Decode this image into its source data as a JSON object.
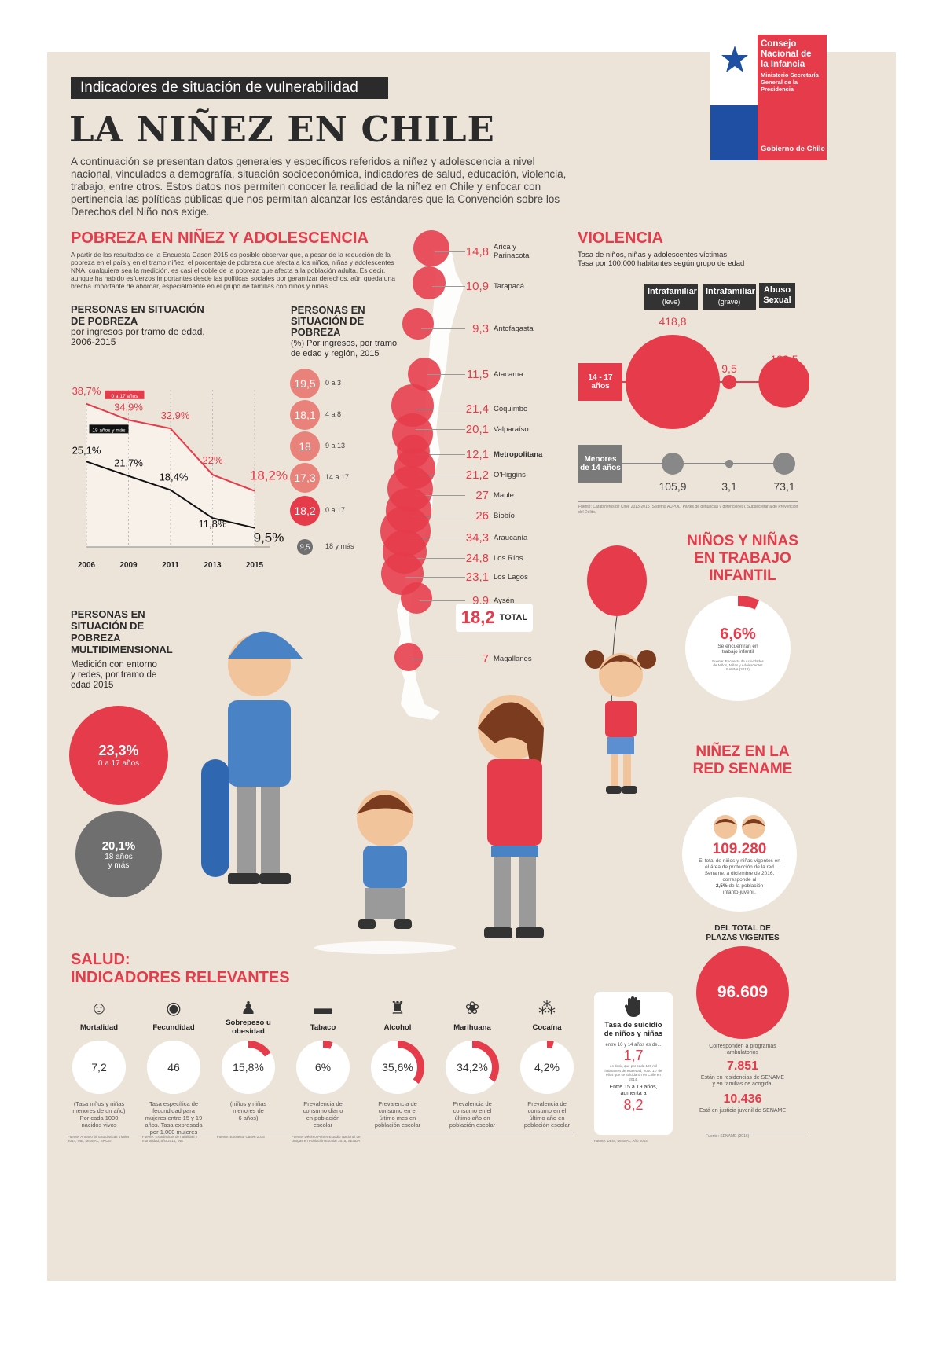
{
  "header": {
    "banner": "Indicadores de situación de vulnerabilidad",
    "title": "LA NIÑEZ EN CHILE",
    "intro": "A continuación se presentan datos generales y específicos referidos a niñez y adolescencia a nivel nacional, vinculados a demografía, situación socioeconómica, indicadores de salud, educación, violencia, trabajo, entre otros. Estos datos nos permiten conocer la realidad de la niñez en Chile y enfocar con pertinencia las políticas públicas que nos permitan alcanzar los estándares que la Convención sobre los Derechos del Niño nos exige."
  },
  "logo": {
    "line1": "Consejo",
    "line2": "Nacional de",
    "line3": "la Infancia",
    "sub1": "Ministerio Secretaría",
    "sub2": "General de la",
    "sub3": "Presidencia",
    "gov": "Gobierno de Chile",
    "colors": {
      "blue": "#1f4fa3",
      "red": "#e63b4a"
    }
  },
  "pobreza": {
    "title": "POBREZA EN NIÑEZ Y ADOLESCENCIA",
    "text": "A partir de los resultados de la Encuesta Casen 2015 es posible observar que, a pesar de la reducción de la pobreza en el país y en el tramo niñez, el porcentaje de pobreza que afecta a los niños, niñas y adolescentes NNA, cualquiera sea la medición, es casi el doble de la pobreza que afecta a la población adulta. Es decir, aunque ha habido esfuerzos importantes desde las políticas sociales por garantizar derechos, aún queda una brecha importante de abordar, especialmente en el grupo de familias con niños y niñas.",
    "chart1_title1": "PERSONAS EN SITUACIÓN",
    "chart1_title2": "DE POBREZA",
    "chart1_sub1": "por ingresos por tramo de edad,",
    "chart1_sub2": "2006-2015",
    "chart2_title": "PERSONAS EN SITUACIÓN DE POBREZA",
    "chart2_sub": "(%) Por ingresos, por tramo de edad y región, 2015"
  },
  "chart_data": [
    {
      "type": "line",
      "x": [
        "2006",
        "2009",
        "2011",
        "2013",
        "2015"
      ],
      "series": [
        {
          "name": "0 a 17 años",
          "values": [
            38.7,
            34.9,
            32.9,
            22,
            18.2
          ],
          "labels": [
            "38,7%",
            "34,9%",
            "32,9%",
            "22%",
            "18,2%"
          ],
          "color": "#e63b4a"
        },
        {
          "name": "18 años y más",
          "values": [
            25.1,
            21.7,
            18.4,
            11.8,
            9.5
          ],
          "labels": [
            "25,1%",
            "21,7%",
            "18,4%",
            "11,8%",
            "9,5%"
          ],
          "color": "#111111"
        }
      ],
      "ylim": [
        5,
        42
      ]
    },
    {
      "type": "bubble",
      "categories": [
        "Arica y Parinacota",
        "Tarapacá",
        "Antofagasta",
        "Atacama",
        "Coquimbo",
        "Valparaíso",
        "Metropolitana",
        "O'Higgins",
        "Maule",
        "Biobío",
        "Araucanía",
        "Los Ríos",
        "Los Lagos",
        "Aysén",
        "Magallanes"
      ],
      "values": [
        14.8,
        10.9,
        9.3,
        11.5,
        21.4,
        20.1,
        12.1,
        21.2,
        27,
        26,
        34.3,
        24.8,
        23.1,
        9.9,
        7
      ],
      "labels": [
        "14,8",
        "10,9",
        "9,3",
        "11,5",
        "21,4",
        "20,1",
        "12,1",
        "21,2",
        "27",
        "26",
        "34,3",
        "24,8",
        "23,1",
        "9,9",
        "7"
      ],
      "total_value": "18,2",
      "total_label": "TOTAL"
    },
    {
      "type": "bubble",
      "categories": [
        "0 a 3",
        "4 a 8",
        "9 a 13",
        "14 a 17",
        "0 a 17",
        "18 y más"
      ],
      "labels": [
        "19,5",
        "18,1",
        "18",
        "17,3",
        "18,2",
        "9,5"
      ],
      "values": [
        19.5,
        18.1,
        18,
        17.3,
        18.2,
        9.5
      ]
    },
    {
      "type": "bubble",
      "categories": [
        "Intrafamiliar (leve)",
        "Intrafamiliar (grave)",
        "Abuso Sexual"
      ],
      "series": [
        {
          "name": "14 - 17 años",
          "values": [
            418.8,
            9.5,
            123.5
          ],
          "labels": [
            "418,8",
            "9,5",
            "123,5"
          ]
        },
        {
          "name": "Menores de 14 años",
          "values": [
            105.9,
            3.1,
            73.1
          ],
          "labels": [
            "105,9",
            "3,1",
            "73,1"
          ]
        }
      ]
    }
  ],
  "multidim": {
    "title1": "PERSONAS EN",
    "title2": "SITUACIÓN DE",
    "title3": "POBREZA",
    "title4": "MULTIDIMENSIONAL",
    "sub1": "Medición con entorno",
    "sub2": "y redes, por tramo de",
    "sub3": "edad 2015",
    "v1": "23,3%",
    "l1": "0 a 17 años",
    "v2": "20,1%",
    "l2a": "18 años",
    "l2b": "y más"
  },
  "violencia": {
    "title": "VIOLENCIA",
    "sub1": "Tasa de niños, niñas y adolescentes víctimas.",
    "sub2": "Tasa por 100.000 habitantes según grupo de edad",
    "col1a": "Intrafamiliar",
    "col1b": "(leve)",
    "col2a": "Intrafamiliar",
    "col2b": "(grave)",
    "col3a": "Abuso",
    "col3b": "Sexual",
    "row1a": "14 - 17",
    "row1b": "años",
    "row2a": "Menores",
    "row2b": "de 14 años",
    "fuente": "Fuente: Carabineros de Chile 2013-2015 (Sistema AUPOL, Partes de denuncias y detenciones). Subsecretaría de Prevención del Delito."
  },
  "trabajo": {
    "title1": "NIÑOS Y NIÑAS",
    "title2": "EN TRABAJO",
    "title3": "INFANTIL",
    "value": "6,6%",
    "desc1": "Se encuentran en",
    "desc2": "trabajo infantil",
    "fuente": "Fuente: Encuesta de Actividades de Niños, Niñas y Adolescentes EANNA (2012)",
    "fraction": 0.066
  },
  "sename": {
    "title1": "NIÑEZ EN LA",
    "title2": "RED SENAME",
    "value": "109.280",
    "desc1": "El total de niños y niñas vigentes en",
    "desc2": "el área de protección de la red",
    "desc3": "Sename, a diciembre de 2016,",
    "desc4": "corresponde al",
    "desc5pct": "2,5%",
    "desc5": " de la población",
    "desc6": "infanto-juvenil.",
    "plazas1": "DEL TOTAL DE",
    "plazas2": "PLAZAS VIGENTES",
    "plazas_value": "96.609",
    "plazas_desc1": "Corresponden a programas",
    "plazas_desc2": "ambulatorios",
    "v2": "7.851",
    "v2_desc1": "Están en residencias de SENAME",
    "v2_desc2": "y en familias de acogida.",
    "v3": "10.436",
    "v3_desc": "Está en justicia juvenil de SENAME",
    "fuente": "Fuente: SENAME (2016)"
  },
  "salud": {
    "title1": "SALUD:",
    "title2": "INDICADORES RELEVANTES",
    "items": [
      {
        "label": "Mortalidad",
        "value": "7,2",
        "d1": "(Tasa niños y niñas",
        "d2": "menores de un año)",
        "d3": "Por cada 1000",
        "d4": "nacidos vivos",
        "fraction": 0,
        "fuente": "Fuente: Anuario de Estadísticas Vitales 2014, INE, MINSAL, SRCEI"
      },
      {
        "label": "Fecundidad",
        "value": "46",
        "d1": "Tasa específica de",
        "d2": "fecundidad para",
        "d3": "mujeres entre 15 y 19",
        "d4": "años. Tasa expresada por 1.000 mujeres",
        "fraction": 0,
        "fuente": "Fuente: Estadísticas de natalidad y mortalidad, año 2014, INE"
      },
      {
        "label": "Sobrepeso u obesidad",
        "value": "15,8%",
        "d1": "(niños y niñas",
        "d2": "menores de",
        "d3": "6 años)",
        "d4": "",
        "fraction": 0.158,
        "fuente": "Fuente: Encuesta Casen 2015"
      },
      {
        "label": "Tabaco",
        "value": "6%",
        "d1": "Prevalencia de",
        "d2": "consumo diario",
        "d3": "en población",
        "d4": "escolar",
        "fraction": 0.06,
        "fuente": "Fuente: Décimo Primer Estudio Nacional de Drogas en Población Escolar 2015, SENDA"
      },
      {
        "label": "Alcohol",
        "value": "35,6%",
        "d1": "Prevalencia de",
        "d2": "consumo en el",
        "d3": "último mes en",
        "d4": "población escolar",
        "fraction": 0.356,
        "fuente": ""
      },
      {
        "label": "Marihuana",
        "value": "34,2%",
        "d1": "Prevalencia de",
        "d2": "consumo en el",
        "d3": "último año en",
        "d4": "población escolar",
        "fraction": 0.342,
        "fuente": ""
      },
      {
        "label": "Cocaína",
        "value": "4,2%",
        "d1": "Prevalencia de",
        "d2": "consumo en el",
        "d3": "último año en",
        "d4": "población escolar",
        "fraction": 0.042,
        "fuente": ""
      }
    ],
    "suicidio": {
      "title1": "Tasa de suicidio",
      "title2": "de niños y niñas",
      "s1": "entre 10 y 14 años es de...",
      "v1": "1,7",
      "s2": "es decir, que por cada 100 mil habitantes de esa edad, hubo 1,7 de ellos que se suicidaron en Chile en 2014.",
      "s3a": "Entre 15 a 19 años,",
      "s3b": "aumenta a",
      "v2": "8,2",
      "fuente": "Fuente: DEIS, MINSAL, Año 2014"
    }
  }
}
